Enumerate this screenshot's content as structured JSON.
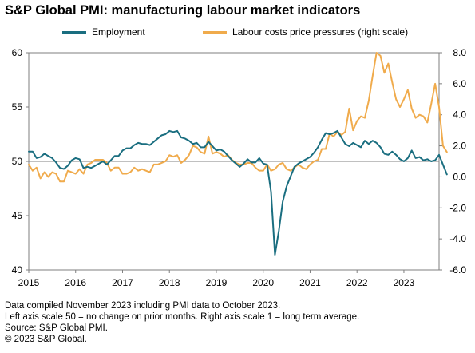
{
  "title": "S&P Global PMI: manufacturing labour market indicators",
  "colors": {
    "employment": "#1a6e80",
    "labour_costs": "#f0ab4c",
    "axis": "#7f7f7f",
    "reference": "#808080"
  },
  "chart_data": {
    "type": "line",
    "title": "S&P Global PMI: manufacturing labour market indicators",
    "x_start": "2015-01",
    "x_end": "2023-10",
    "x_ticks": [
      "2015",
      "2016",
      "2017",
      "2018",
      "2019",
      "2020",
      "2021",
      "2022",
      "2023"
    ],
    "left_axis": {
      "ylim": [
        40,
        60
      ],
      "ticks": [
        "40",
        "45",
        "50",
        "55",
        "60"
      ]
    },
    "right_axis": {
      "ylim": [
        -6,
        8
      ],
      "ticks": [
        "-6.0",
        "-4.0",
        "-2.0",
        "0.0",
        "2.0",
        "4.0",
        "6.0",
        "8.0"
      ]
    },
    "reference_line": 50,
    "legend_position": "top",
    "series": [
      {
        "name": "Employment",
        "axis": "left",
        "values": [
          50.9,
          50.9,
          50.3,
          50.4,
          50.7,
          50.5,
          50.3,
          49.9,
          49.4,
          49.3,
          49.6,
          50.1,
          50.3,
          50.2,
          49.4,
          49.5,
          49.4,
          49.6,
          49.8,
          50.0,
          49.7,
          50.1,
          50.5,
          50.5,
          51.0,
          51.2,
          51.2,
          51.5,
          51.7,
          51.6,
          51.6,
          51.5,
          51.8,
          52.1,
          52.4,
          52.5,
          52.8,
          52.7,
          52.8,
          52.2,
          52.1,
          51.9,
          51.6,
          51.7,
          51.3,
          51.3,
          51.8,
          51.4,
          51.0,
          51.1,
          50.9,
          50.5,
          50.1,
          49.8,
          49.5,
          49.8,
          50.2,
          49.9,
          49.9,
          50.3,
          49.8,
          49.7,
          47.2,
          41.4,
          43.6,
          46.3,
          47.7,
          48.6,
          49.5,
          49.8,
          50.0,
          50.2,
          50.4,
          50.8,
          51.3,
          52.0,
          52.6,
          52.5,
          52.6,
          52.8,
          52.2,
          51.6,
          51.4,
          51.7,
          51.5,
          51.3,
          51.9,
          51.6,
          51.9,
          51.7,
          51.3,
          50.7,
          50.6,
          50.9,
          50.6,
          50.2,
          50.0,
          50.3,
          51.0,
          50.3,
          50.4,
          50.1,
          50.2,
          50.0,
          50.1,
          50.6,
          49.7,
          48.8
        ]
      },
      {
        "name": "Labour costs price pressures (right scale)",
        "axis": "right",
        "values": [
          0.8,
          0.4,
          0.6,
          -0.1,
          0.3,
          0.0,
          0.3,
          0.2,
          -0.3,
          -0.3,
          0.4,
          0.3,
          0.2,
          0.5,
          0.2,
          0.8,
          0.9,
          1.1,
          1.1,
          1.1,
          0.9,
          0.4,
          0.6,
          0.6,
          0.2,
          0.2,
          0.3,
          0.6,
          0.4,
          0.5,
          0.4,
          0.3,
          0.8,
          0.8,
          0.9,
          1.0,
          1.4,
          1.3,
          1.4,
          0.9,
          1.1,
          1.4,
          2.0,
          1.9,
          1.6,
          1.5,
          2.6,
          1.5,
          1.6,
          1.5,
          1.3,
          1.4,
          1.1,
          0.9,
          0.8,
          0.8,
          0.9,
          0.9,
          0.6,
          0.4,
          0.4,
          0.8,
          0.4,
          0.5,
          0.8,
          0.9,
          0.5,
          0.4,
          0.6,
          0.8,
          0.6,
          0.5,
          0.8,
          1.0,
          1.1,
          1.8,
          1.8,
          2.8,
          2.6,
          2.9,
          2.7,
          2.9,
          4.4,
          3.0,
          3.6,
          3.9,
          3.8,
          4.9,
          6.5,
          8.0,
          7.8,
          6.7,
          7.3,
          6.1,
          5.0,
          4.5,
          5.0,
          5.6,
          4.4,
          3.8,
          4.0,
          3.9,
          3.5,
          4.7,
          6.0,
          4.5,
          2.0,
          1.6
        ]
      }
    ]
  },
  "notes": [
    "Data compiled November 2023 including PMI data to October 2023.",
    "Left axis scale 50 = no change on prior months. Right axis scale 1 = long term average.",
    "Source: S&P Global PMI."
  ],
  "copyright": "© 2023 S&P Global."
}
